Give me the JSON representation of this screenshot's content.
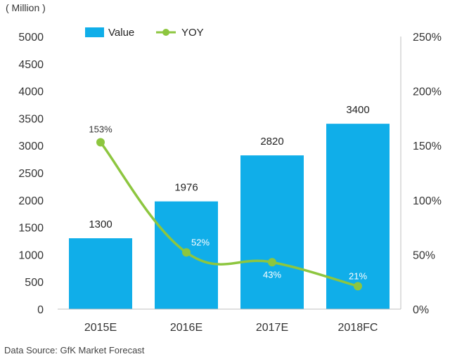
{
  "chart_data": {
    "type": "bar",
    "unit_label": "( Million )",
    "categories": [
      "2015E",
      "2016E",
      "2017E",
      "2018FC"
    ],
    "series": [
      {
        "name": "Value",
        "type": "bar",
        "axis": "left",
        "values": [
          1300,
          1976,
          2820,
          3400
        ],
        "color": "#10aee9"
      },
      {
        "name": "YOY",
        "type": "line",
        "axis": "right",
        "values": [
          153,
          52,
          43,
          21
        ],
        "value_labels": [
          "153%",
          "52%",
          "43%",
          "21%"
        ],
        "color": "#8dc63f"
      }
    ],
    "left_axis": {
      "ylim": [
        0,
        5000
      ],
      "ticks": [
        "0",
        "500",
        "1000",
        "1500",
        "2000",
        "2500",
        "3000",
        "3500",
        "4000",
        "4500",
        "5000"
      ]
    },
    "right_axis": {
      "ylim": [
        0,
        250
      ],
      "ticks": [
        "0%",
        "50%",
        "100%",
        "150%",
        "200%",
        "250%"
      ]
    },
    "legend_position": "top-left",
    "grid": false
  },
  "footer": {
    "source": "Data Source:  GfK Market Forecast"
  }
}
